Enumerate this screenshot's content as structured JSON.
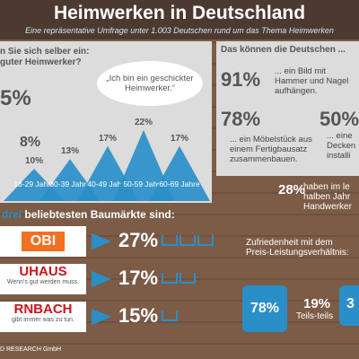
{
  "header": {
    "title": "Heimwerken in Deutschland",
    "subtitle": "Eine repräsentative Umfrage unter 1.003 Deutschen rund um das Thema Heimwerken"
  },
  "self_assessment": {
    "question_line1": "n Sie sich selber ein:",
    "question_line2": "guter Heimwerker?",
    "female_share": "5%",
    "male_share": "8%",
    "quote": "„Ich bin ein geschickter Heimwerker.“",
    "ages": [
      {
        "age": "18-29 Jahre",
        "value": 10,
        "value_label": "10%"
      },
      {
        "age": "30-39 Jahre",
        "value": 13,
        "value_label": "13%"
      },
      {
        "age": "40-49 Jahre",
        "value": 17,
        "value_label": "17%"
      },
      {
        "age": "50-59 Jahre",
        "value": 22,
        "value_label": "22%"
      },
      {
        "age": "60-69 Jahre",
        "value": 17,
        "value_label": "17%"
      }
    ]
  },
  "skills": {
    "title": "Das können die Deutschen ...",
    "items": [
      {
        "share": "91%",
        "text": "... ein Bild mit Hammer und Nagel aufhängen."
      },
      {
        "share": "78%",
        "text": "... ein Möbelstück aus einem Fertigbausatz zusammenbauen."
      },
      {
        "share": "50%",
        "text": "... eine Decken installi"
      }
    ]
  },
  "craftsmen": {
    "share": "28%",
    "text": "haben im le halben Jahr Handwerker",
    "satisfaction_title": "Zufriedenheit mit dem Preis-Leistungsverhältnis:",
    "satisfied": "78%",
    "partly": "19%",
    "partly_label": "Teils-teils",
    "unsatisfied": "3"
  },
  "stores": {
    "title_highlight": "drei",
    "title_rest": "beliebtesten Baumärkte sind:",
    "rows": [
      {
        "logo": "OBI",
        "share": "27%"
      },
      {
        "logo": "UHAUS",
        "tagline": "Wenn's gut werden muss.",
        "share": "17%"
      },
      {
        "logo": "RNBACH",
        "tagline": "gibt immer was zu tun.",
        "share": "15%"
      }
    ]
  },
  "footer": "D RESEARCH GmbH"
}
